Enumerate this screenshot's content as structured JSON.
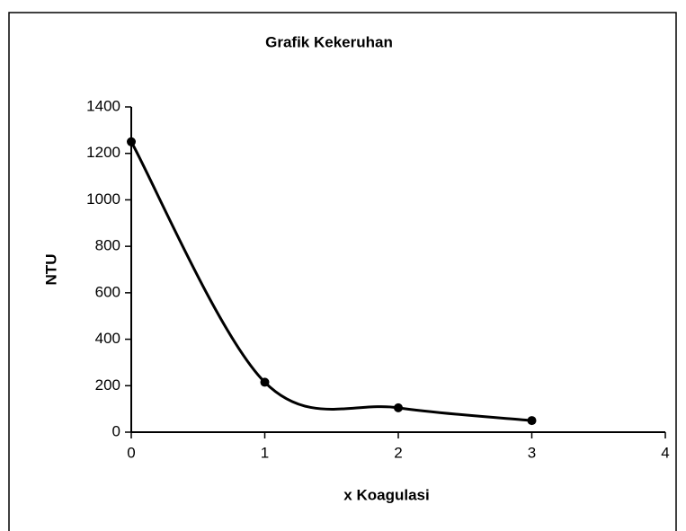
{
  "chart_data": {
    "type": "line",
    "title": "Grafik Kekeruhan",
    "x_label": "x Koagulasi",
    "y_label": "NTU",
    "x": [
      0,
      1,
      2,
      3
    ],
    "series": [
      {
        "name": "NTU",
        "color": "#000000",
        "values": [
          1250,
          215,
          105,
          50
        ]
      }
    ],
    "xlim": [
      0,
      4
    ],
    "xticks": [
      0,
      1,
      2,
      3,
      4
    ],
    "ylim": [
      0,
      1400
    ],
    "yticks": [
      0,
      200,
      400,
      600,
      800,
      1000,
      1200,
      1400
    ],
    "smooth": true,
    "markers": true
  }
}
